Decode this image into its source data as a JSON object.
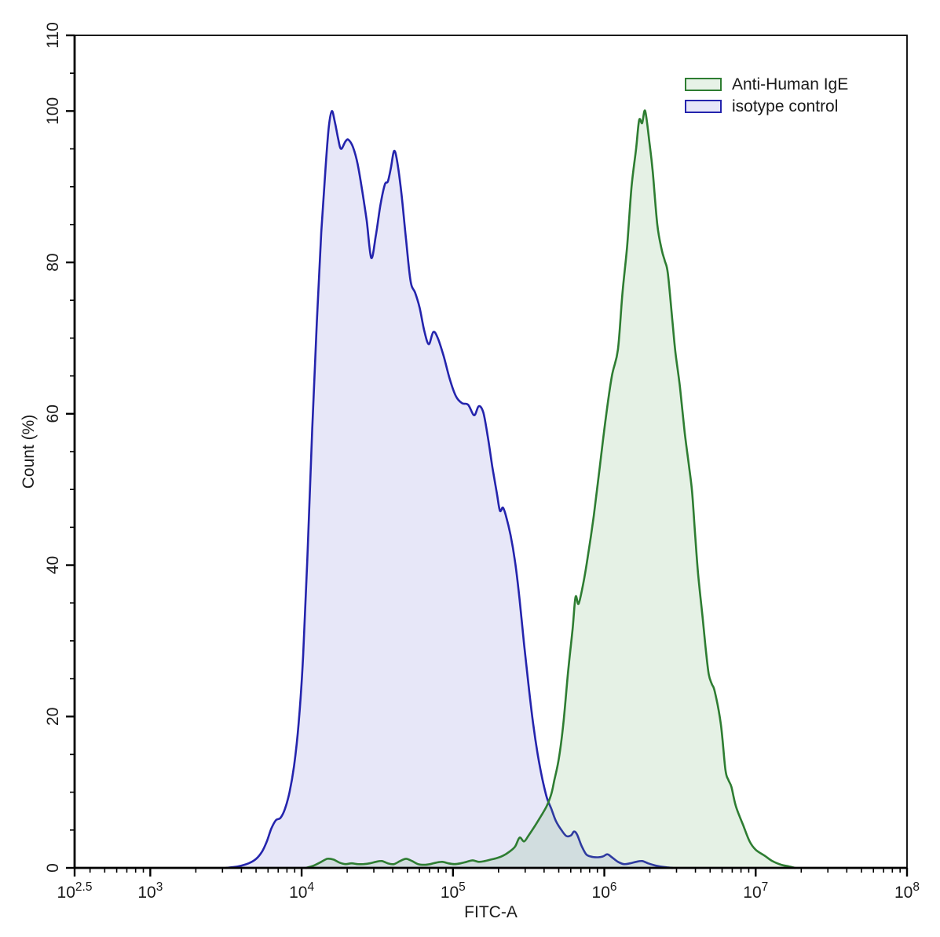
{
  "figure": {
    "legend": {
      "position": "top-right",
      "items": [
        {
          "label": "Anti-Human IgE",
          "swatch_border": "#2e7d32",
          "swatch_fill": "#e7f2e7"
        },
        {
          "label": "isotype control",
          "swatch_border": "#2424ad",
          "swatch_fill": "#e6e6f8"
        }
      ]
    }
  },
  "chart_data": {
    "type": "area",
    "subtype": "flow-cytometry-histogram-overlay",
    "title": "",
    "xlabel": "FITC-A",
    "ylabel": "Count  (%)",
    "x_scale": "log10",
    "x_range_log10": [
      2.5,
      8
    ],
    "x_major_ticks": [
      {
        "log": 2.5,
        "base": "10",
        "exp": "2.5"
      },
      {
        "log": 3,
        "base": "10",
        "exp": "3"
      },
      {
        "log": 4,
        "base": "10",
        "exp": "4"
      },
      {
        "log": 5,
        "base": "10",
        "exp": "5"
      },
      {
        "log": 6,
        "base": "10",
        "exp": "6"
      },
      {
        "log": 7,
        "base": "10",
        "exp": "7"
      },
      {
        "log": 8,
        "base": "10",
        "exp": "8"
      }
    ],
    "x_minor_ticks": "log-decades 2-9 per decade",
    "y_range": [
      0,
      110
    ],
    "y_major_ticks": [
      0,
      20,
      40,
      60,
      80,
      100,
      110
    ],
    "y_minor_step": 5,
    "grid": false,
    "frame": "full-box",
    "axis_color": "#000000",
    "series": [
      {
        "name": "Anti-Human IgE",
        "line_color": "#2e7d32",
        "fill_color": "rgba(100,170,100,0.17)",
        "swatch_fill": "#e7f2e7",
        "peak_log10x": 6.27,
        "peak_percent": 100,
        "points": [
          [
            4.03,
            0
          ],
          [
            4.08,
            0.3
          ],
          [
            4.13,
            0.8
          ],
          [
            4.17,
            1.2
          ],
          [
            4.21,
            1.1
          ],
          [
            4.25,
            0.7
          ],
          [
            4.29,
            0.5
          ],
          [
            4.33,
            0.6
          ],
          [
            4.37,
            0.5
          ],
          [
            4.41,
            0.5
          ],
          [
            4.45,
            0.6
          ],
          [
            4.49,
            0.8
          ],
          [
            4.53,
            0.9
          ],
          [
            4.57,
            0.6
          ],
          [
            4.61,
            0.5
          ],
          [
            4.65,
            0.9
          ],
          [
            4.69,
            1.2
          ],
          [
            4.73,
            0.9
          ],
          [
            4.77,
            0.5
          ],
          [
            4.81,
            0.4
          ],
          [
            4.85,
            0.5
          ],
          [
            4.89,
            0.7
          ],
          [
            4.93,
            0.8
          ],
          [
            4.97,
            0.6
          ],
          [
            5.01,
            0.5
          ],
          [
            5.05,
            0.6
          ],
          [
            5.09,
            0.8
          ],
          [
            5.13,
            1.0
          ],
          [
            5.17,
            0.8
          ],
          [
            5.21,
            0.9
          ],
          [
            5.25,
            1.1
          ],
          [
            5.29,
            1.3
          ],
          [
            5.33,
            1.6
          ],
          [
            5.37,
            2.1
          ],
          [
            5.41,
            2.8
          ],
          [
            5.44,
            4.0
          ],
          [
            5.47,
            3.5
          ],
          [
            5.5,
            4.3
          ],
          [
            5.54,
            5.5
          ],
          [
            5.58,
            6.8
          ],
          [
            5.62,
            8.2
          ],
          [
            5.65,
            9.8
          ],
          [
            5.67,
            11.6
          ],
          [
            5.7,
            14.5
          ],
          [
            5.73,
            19.2
          ],
          [
            5.76,
            25.8
          ],
          [
            5.79,
            31.5
          ],
          [
            5.81,
            35.8
          ],
          [
            5.83,
            34.9
          ],
          [
            5.86,
            37.5
          ],
          [
            5.89,
            41.0
          ],
          [
            5.93,
            46.5
          ],
          [
            5.97,
            53.0
          ],
          [
            6.01,
            59.5
          ],
          [
            6.05,
            65.0
          ],
          [
            6.09,
            68.5
          ],
          [
            6.12,
            76.0
          ],
          [
            6.15,
            82.0
          ],
          [
            6.18,
            90.0
          ],
          [
            6.21,
            95.0
          ],
          [
            6.23,
            98.8
          ],
          [
            6.25,
            98.4
          ],
          [
            6.27,
            100.0
          ],
          [
            6.3,
            95.5
          ],
          [
            6.32,
            92.0
          ],
          [
            6.35,
            85.0
          ],
          [
            6.38,
            81.6
          ],
          [
            6.4,
            80.2
          ],
          [
            6.42,
            78.5
          ],
          [
            6.45,
            72.2
          ],
          [
            6.47,
            68.1
          ],
          [
            6.5,
            63.5
          ],
          [
            6.53,
            57.7
          ],
          [
            6.56,
            53.0
          ],
          [
            6.58,
            49.7
          ],
          [
            6.6,
            44.0
          ],
          [
            6.62,
            38.8
          ],
          [
            6.65,
            33.0
          ],
          [
            6.67,
            28.9
          ],
          [
            6.69,
            25.6
          ],
          [
            6.71,
            24.3
          ],
          [
            6.73,
            23.3
          ],
          [
            6.77,
            19.0
          ],
          [
            6.8,
            13.0
          ],
          [
            6.82,
            11.6
          ],
          [
            6.84,
            10.7
          ],
          [
            6.87,
            8.1
          ],
          [
            6.92,
            5.5
          ],
          [
            6.96,
            3.5
          ],
          [
            7.0,
            2.4
          ],
          [
            7.06,
            1.6
          ],
          [
            7.11,
            0.9
          ],
          [
            7.17,
            0.4
          ],
          [
            7.22,
            0.2
          ],
          [
            7.26,
            0
          ]
        ]
      },
      {
        "name": "isotype control",
        "line_color": "#2424ad",
        "fill_color": "rgba(106,106,212,0.16)",
        "swatch_fill": "#e6e6f8",
        "peak_log10x": 4.2,
        "peak_percent": 100,
        "points": [
          [
            3.5,
            0
          ],
          [
            3.58,
            0.2
          ],
          [
            3.65,
            0.6
          ],
          [
            3.7,
            1.2
          ],
          [
            3.74,
            2.2
          ],
          [
            3.77,
            3.5
          ],
          [
            3.8,
            5.2
          ],
          [
            3.83,
            6.3
          ],
          [
            3.86,
            6.6
          ],
          [
            3.89,
            7.8
          ],
          [
            3.92,
            10.0
          ],
          [
            3.95,
            13.5
          ],
          [
            3.98,
            19.0
          ],
          [
            4.01,
            28.0
          ],
          [
            4.04,
            42.0
          ],
          [
            4.07,
            58.0
          ],
          [
            4.1,
            72.0
          ],
          [
            4.13,
            84.0
          ],
          [
            4.16,
            93.0
          ],
          [
            4.18,
            98.0
          ],
          [
            4.2,
            100.0
          ],
          [
            4.22,
            98.5
          ],
          [
            4.24,
            96.5
          ],
          [
            4.26,
            95.0
          ],
          [
            4.29,
            96.0
          ],
          [
            4.31,
            96.2
          ],
          [
            4.34,
            95.2
          ],
          [
            4.37,
            93.0
          ],
          [
            4.4,
            89.5
          ],
          [
            4.43,
            85.5
          ],
          [
            4.46,
            80.6
          ],
          [
            4.49,
            83.5
          ],
          [
            4.52,
            87.5
          ],
          [
            4.55,
            90.3
          ],
          [
            4.57,
            90.7
          ],
          [
            4.59,
            92.5
          ],
          [
            4.61,
            94.7
          ],
          [
            4.63,
            93.5
          ],
          [
            4.66,
            89.0
          ],
          [
            4.69,
            83.0
          ],
          [
            4.72,
            77.5
          ],
          [
            4.75,
            76.0
          ],
          [
            4.78,
            74.0
          ],
          [
            4.81,
            71.0
          ],
          [
            4.84,
            69.2
          ],
          [
            4.87,
            70.8
          ],
          [
            4.9,
            70.0
          ],
          [
            4.94,
            67.5
          ],
          [
            4.98,
            64.5
          ],
          [
            5.02,
            62.3
          ],
          [
            5.06,
            61.4
          ],
          [
            5.1,
            61.2
          ],
          [
            5.14,
            59.8
          ],
          [
            5.17,
            61.0
          ],
          [
            5.2,
            60.2
          ],
          [
            5.23,
            57.0
          ],
          [
            5.26,
            53.0
          ],
          [
            5.29,
            49.5
          ],
          [
            5.31,
            47.2
          ],
          [
            5.33,
            47.6
          ],
          [
            5.35,
            46.5
          ],
          [
            5.38,
            44.0
          ],
          [
            5.41,
            40.5
          ],
          [
            5.44,
            35.5
          ],
          [
            5.47,
            29.5
          ],
          [
            5.5,
            24.0
          ],
          [
            5.53,
            19.0
          ],
          [
            5.56,
            15.0
          ],
          [
            5.59,
            11.8
          ],
          [
            5.62,
            9.3
          ],
          [
            5.65,
            7.8
          ],
          [
            5.68,
            6.2
          ],
          [
            5.72,
            4.9
          ],
          [
            5.75,
            4.2
          ],
          [
            5.78,
            4.3
          ],
          [
            5.8,
            4.8
          ],
          [
            5.82,
            4.4
          ],
          [
            5.85,
            2.9
          ],
          [
            5.88,
            1.8
          ],
          [
            5.91,
            1.5
          ],
          [
            5.95,
            1.4
          ],
          [
            5.99,
            1.5
          ],
          [
            6.02,
            1.8
          ],
          [
            6.05,
            1.4
          ],
          [
            6.09,
            0.8
          ],
          [
            6.13,
            0.5
          ],
          [
            6.17,
            0.6
          ],
          [
            6.21,
            0.8
          ],
          [
            6.25,
            0.9
          ],
          [
            6.29,
            0.6
          ],
          [
            6.34,
            0.3
          ],
          [
            6.4,
            0.1
          ],
          [
            6.45,
            0
          ]
        ]
      }
    ]
  }
}
